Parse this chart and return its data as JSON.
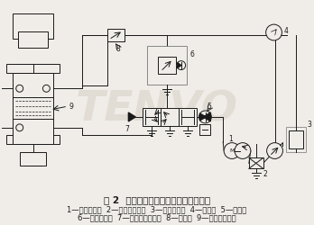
{
  "title": "图 2  电动泵或液压驱动装置液压原理图",
  "legend_line1": "1—变量叶片泵  2—线隙式过滤器  3—中压溢流阀  4—压力表  5—单向阀",
  "legend_line2": "6—单向减压阀  7—三位四通换向阀  8—调速阀  9—防爆微动开关",
  "bg_color": "#f0ede8",
  "line_color": "#1a1a1a",
  "title_fontsize": 7.5,
  "legend_fontsize": 6.0,
  "watermark_text": "TENVO",
  "watermark_color": "#d0c8bc",
  "watermark_alpha": 0.45
}
